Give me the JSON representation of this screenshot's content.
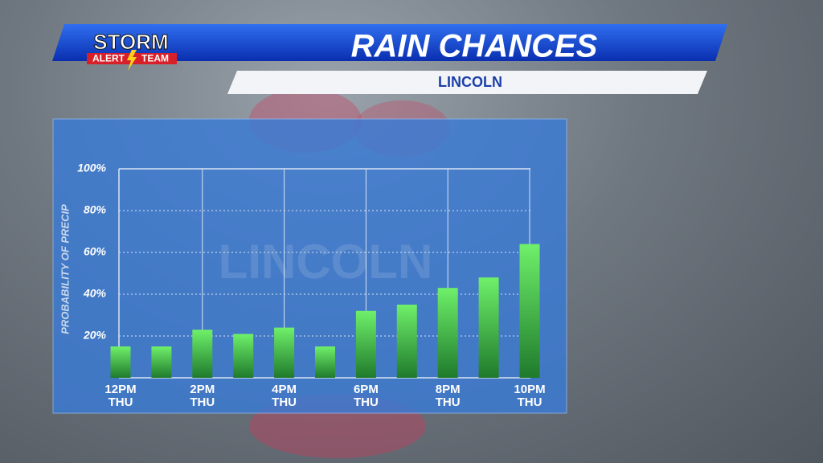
{
  "header": {
    "title": "RAIN CHANCES",
    "subtitle": "LINCOLN",
    "logo_top": "STORM",
    "logo_left": "ALERT",
    "logo_right": "TEAM"
  },
  "chart_data": {
    "type": "bar",
    "watermark": "LINCOLN",
    "y_label": "PROBABILITY OF PRECIP",
    "categories": [
      "12PM THU",
      null,
      "2PM THU",
      null,
      "4PM THU",
      null,
      "6PM THU",
      null,
      "8PM THU",
      null,
      "10PM THU"
    ],
    "values": [
      15,
      15,
      23,
      21,
      24,
      15,
      32,
      35,
      43,
      48,
      64
    ],
    "color": "#3cc43c",
    "ylim": [
      0,
      100
    ],
    "yticks": [
      {
        "value": 20,
        "label": "20%"
      },
      {
        "value": 40,
        "label": "40%"
      },
      {
        "value": 60,
        "label": "60%"
      },
      {
        "value": 80,
        "label": "80%"
      },
      {
        "value": 100,
        "label": "100%"
      }
    ],
    "grid": true
  }
}
